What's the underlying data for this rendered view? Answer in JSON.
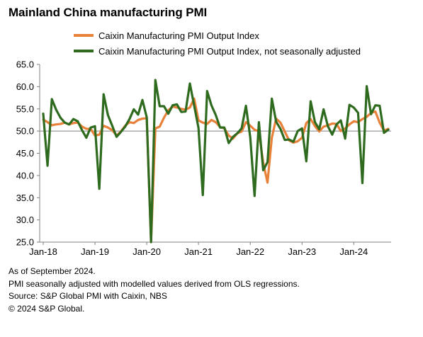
{
  "title": "Mainland China manufacturing PMI",
  "footnotes": [
    "As of September 2024.",
    "PMI seasonally adjusted with modelled values derived from OLS regressions.",
    "Source: S&P Global PMI with Caixin, NBS",
    "© 2024 S&P Global."
  ],
  "colors": {
    "sa": "#E8813A",
    "nsa": "#2E6B1F"
  },
  "chart_data": {
    "type": "line",
    "title": "Mainland China manufacturing PMI",
    "xlabel": "",
    "ylabel": "",
    "ylim": [
      25,
      65
    ],
    "yticks": [
      25.0,
      30.0,
      35.0,
      40.0,
      45.0,
      50.0,
      55.0,
      60.0,
      65.0
    ],
    "ytick_labels": [
      "25.0",
      "30.0",
      "35.0",
      "40.0",
      "45.0",
      "50.0",
      "55.0",
      "60.0",
      "65.0"
    ],
    "x_start": "2018-01",
    "x_end": "2024-09",
    "x_tick_labels": [
      "Jan-18",
      "Jan-19",
      "Jan-20",
      "Jan-21",
      "Jan-22",
      "Jan-23",
      "Jan-24"
    ],
    "reference_line": 50,
    "grid": false,
    "legend_position": "top",
    "series": [
      {
        "name": "Caixin Manufacturing PMI Output Index",
        "color": "#E8813A",
        "values": [
          52.6,
          52.0,
          51.3,
          51.5,
          51.6,
          51.9,
          51.5,
          51.8,
          51.9,
          51.0,
          50.5,
          50.5,
          49.0,
          49.2,
          51.2,
          50.8,
          50.2,
          49.0,
          49.9,
          51.2,
          52.0,
          51.8,
          52.5,
          52.8,
          52.9,
          25.0,
          50.6,
          51.0,
          53.0,
          54.7,
          55.5,
          55.3,
          55.0,
          54.8,
          55.3,
          57.3,
          52.4,
          51.9,
          51.6,
          52.5,
          52.0,
          50.9,
          50.6,
          49.0,
          48.3,
          49.5,
          49.9,
          52.0,
          51.2,
          50.3,
          49.9,
          42.9,
          38.4,
          48.5,
          52.8,
          51.9,
          49.9,
          47.9,
          47.4,
          47.7,
          48.5,
          51.8,
          52.7,
          51.1,
          49.9,
          51.0,
          51.3,
          51.7,
          51.6,
          50.0,
          50.6,
          51.5,
          52.2,
          52.0,
          52.7,
          53.2,
          54.1,
          54.4,
          51.9,
          50.1,
          50.5
        ],
        "note": "Jan-18 through Sep-24 monthly values (first 81 months)"
      },
      {
        "name": "Caixin Manufacturing PMI Output Index, not seasonally adjusted",
        "color": "#2E6B1F",
        "values": [
          53.9,
          42.2,
          57.2,
          54.8,
          53.0,
          51.9,
          51.5,
          52.7,
          52.2,
          50.2,
          48.5,
          50.8,
          51.1,
          37.0,
          58.3,
          53.6,
          51.2,
          48.7,
          49.8,
          51.0,
          52.7,
          54.9,
          53.7,
          57.0,
          53.1,
          25.0,
          61.5,
          55.6,
          55.6,
          53.9,
          55.8,
          56.0,
          54.3,
          54.4,
          60.7,
          55.7,
          50.7,
          35.6,
          59.0,
          55.8,
          53.6,
          50.8,
          50.8,
          47.3,
          48.7,
          49.5,
          50.6,
          55.7,
          48.6,
          35.4,
          52.0,
          41.2,
          43.0,
          57.3,
          52.1,
          50.5,
          48.0,
          48.1,
          47.6,
          50.0,
          50.6,
          43.2,
          56.7,
          52.0,
          50.4,
          54.9,
          51.1,
          49.2,
          51.5,
          52.4,
          48.3,
          55.9,
          55.3,
          54.1,
          38.3,
          60.1,
          53.8,
          55.8,
          55.7,
          49.6,
          50.3
        ],
        "note": "Jan-18 through Sep-24 monthly values"
      }
    ]
  }
}
